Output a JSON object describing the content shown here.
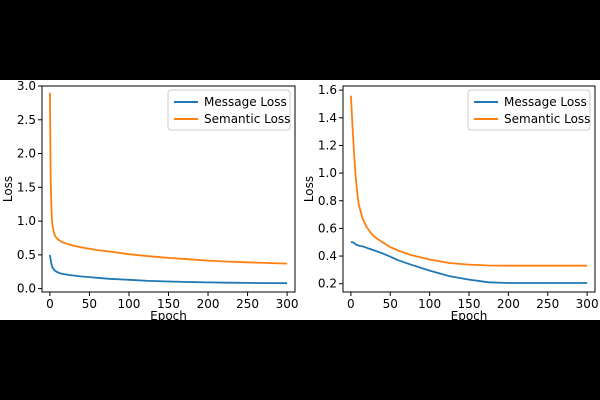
{
  "colors": {
    "message": "#1f77b4",
    "semantic": "#ff7f0e",
    "page_background": "#000000",
    "figure_background": "#ffffff"
  },
  "chart_data": [
    {
      "type": "line",
      "title": "",
      "xlabel": "Epoch",
      "ylabel": "Loss",
      "xlim": [
        -10,
        310
      ],
      "ylim": [
        -0.05,
        3.0
      ],
      "xticks": [
        0,
        50,
        100,
        150,
        200,
        250,
        300
      ],
      "yticks": [
        0.0,
        0.5,
        1.0,
        1.5,
        2.0,
        2.5,
        3.0
      ],
      "ytick_labels": [
        "0.0",
        "0.5",
        "1.0",
        "1.5",
        "2.0",
        "2.5",
        "3.0"
      ],
      "grid": false,
      "legend": "top-right",
      "x": [
        0,
        1,
        2,
        3,
        5,
        7,
        10,
        15,
        20,
        25,
        30,
        40,
        50,
        60,
        75,
        100,
        125,
        150,
        175,
        200,
        225,
        250,
        275,
        300
      ],
      "series": [
        {
          "name": "Message Loss",
          "values": [
            0.5,
            0.42,
            0.36,
            0.32,
            0.28,
            0.26,
            0.24,
            0.22,
            0.21,
            0.2,
            0.195,
            0.18,
            0.17,
            0.16,
            0.145,
            0.13,
            0.115,
            0.105,
            0.098,
            0.092,
            0.088,
            0.085,
            0.082,
            0.08
          ]
        },
        {
          "name": "Semantic Loss",
          "values": [
            2.9,
            1.6,
            1.15,
            0.95,
            0.83,
            0.77,
            0.73,
            0.69,
            0.67,
            0.65,
            0.635,
            0.61,
            0.59,
            0.57,
            0.55,
            0.51,
            0.48,
            0.455,
            0.435,
            0.415,
            0.4,
            0.39,
            0.38,
            0.37
          ]
        }
      ]
    },
    {
      "type": "line",
      "title": "",
      "xlabel": "Epoch",
      "ylabel": "Loss",
      "xlim": [
        -10,
        310
      ],
      "ylim": [
        0.14,
        1.63
      ],
      "xticks": [
        0,
        50,
        100,
        150,
        200,
        250,
        300
      ],
      "yticks": [
        0.2,
        0.4,
        0.6,
        0.8,
        1.0,
        1.2,
        1.4,
        1.6
      ],
      "ytick_labels": [
        "0.2",
        "0.4",
        "0.6",
        "0.8",
        "1.0",
        "1.2",
        "1.4",
        "1.6"
      ],
      "grid": false,
      "legend": "top-right",
      "x": [
        0,
        2,
        4,
        6,
        8,
        10,
        15,
        20,
        25,
        30,
        40,
        50,
        60,
        75,
        100,
        125,
        150,
        175,
        200,
        225,
        250,
        275,
        300
      ],
      "series": [
        {
          "name": "Message Loss",
          "values": [
            0.5,
            0.5,
            0.495,
            0.485,
            0.48,
            0.475,
            0.47,
            0.46,
            0.45,
            0.44,
            0.42,
            0.395,
            0.37,
            0.34,
            0.295,
            0.255,
            0.23,
            0.21,
            0.205,
            0.205,
            0.205,
            0.205,
            0.205
          ]
        },
        {
          "name": "Semantic Loss",
          "values": [
            1.56,
            1.35,
            1.15,
            0.98,
            0.86,
            0.77,
            0.67,
            0.61,
            0.57,
            0.54,
            0.5,
            0.465,
            0.44,
            0.41,
            0.375,
            0.35,
            0.338,
            0.332,
            0.33,
            0.33,
            0.33,
            0.33,
            0.33
          ]
        }
      ]
    }
  ]
}
